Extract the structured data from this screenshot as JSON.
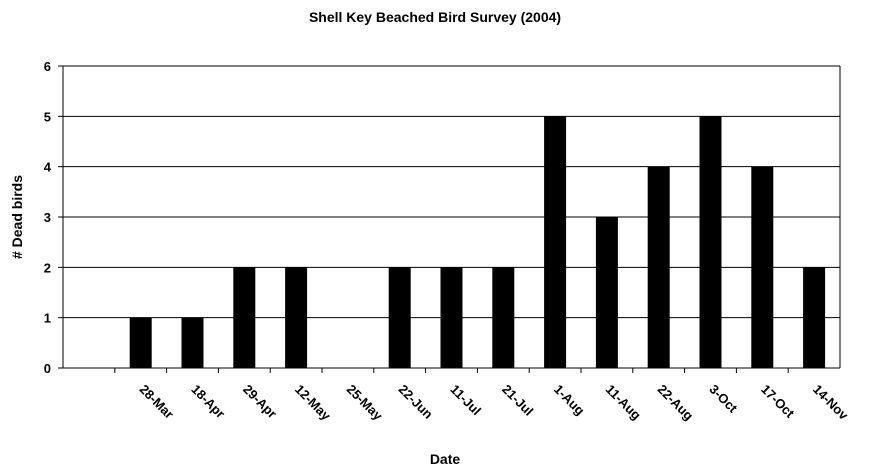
{
  "chart_data": {
    "type": "bar",
    "title": "Shell Key Beached Bird Survey (2004)",
    "xlabel": "Date",
    "ylabel": "# Dead birds",
    "categories": [
      "28-Mar",
      "18-Apr",
      "29-Apr",
      "12-May",
      "25-May",
      "22-Jun",
      "11-Jul",
      "21-Jul",
      "1-Aug",
      "11-Aug",
      "22-Aug",
      "3-Oct",
      "17-Oct",
      "14-Nov"
    ],
    "values": [
      1,
      1,
      2,
      2,
      0,
      2,
      2,
      2,
      5,
      3,
      4,
      5,
      4,
      2
    ],
    "yticks": [
      "0",
      "1",
      "2",
      "3",
      "4",
      "5",
      "6"
    ],
    "ylim": [
      0,
      6
    ],
    "grid": true,
    "legend": "none",
    "colors": {
      "bar": "#000000",
      "background": "#ffffff"
    }
  }
}
